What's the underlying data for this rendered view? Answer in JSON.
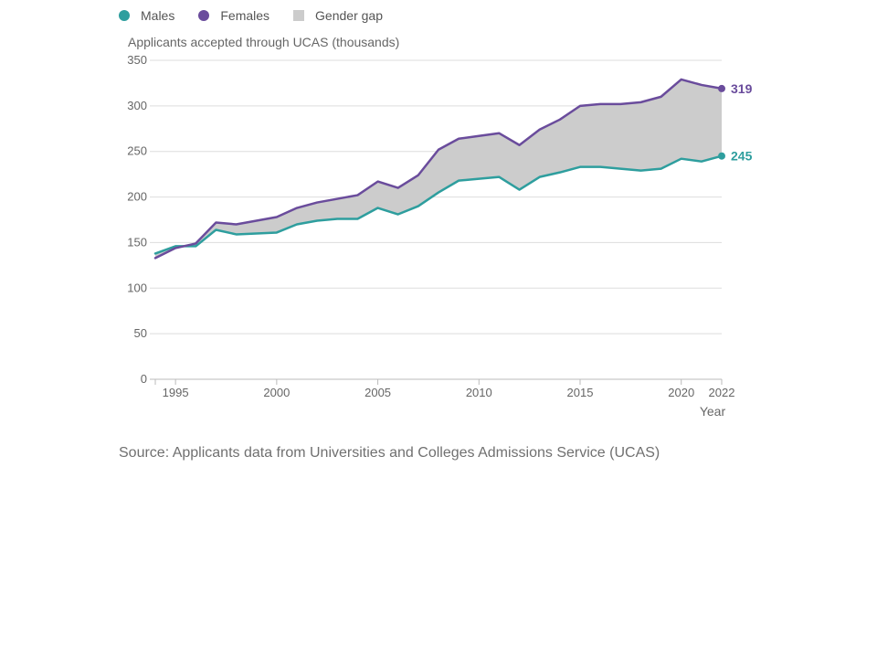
{
  "legend": [
    {
      "label": "Males",
      "color": "#2e9e9e",
      "shape": "circle"
    },
    {
      "label": "Females",
      "color": "#6a4c9c",
      "shape": "circle"
    },
    {
      "label": "Gender gap",
      "color": "#cccccc",
      "shape": "square"
    }
  ],
  "source": "Source: Applicants data from Universities and Colleges Admissions Service (UCAS)",
  "chart_data": {
    "type": "line",
    "title": "",
    "ylabel": "Applicants accepted through UCAS (thousands)",
    "xlabel": "Year",
    "ylim": [
      0,
      350
    ],
    "xlim": [
      1994,
      2022
    ],
    "yticks": [
      0,
      50,
      100,
      150,
      200,
      250,
      300,
      350
    ],
    "xticks": [
      1995,
      2000,
      2005,
      2010,
      2015,
      2020,
      2022
    ],
    "grid": true,
    "legend_position": "top-left",
    "x": [
      1994,
      1995,
      1996,
      1997,
      1998,
      1999,
      2000,
      2001,
      2002,
      2003,
      2004,
      2005,
      2006,
      2007,
      2008,
      2009,
      2010,
      2011,
      2012,
      2013,
      2014,
      2015,
      2016,
      2017,
      2018,
      2019,
      2020,
      2021,
      2022
    ],
    "series": [
      {
        "name": "Males",
        "color": "#2e9e9e",
        "values": [
          138,
          146,
          146,
          164,
          159,
          160,
          161,
          170,
          174,
          176,
          176,
          188,
          181,
          190,
          205,
          218,
          220,
          222,
          208,
          222,
          227,
          233,
          233,
          231,
          229,
          231,
          242,
          239,
          245
        ],
        "end_label": "245"
      },
      {
        "name": "Females",
        "color": "#6a4c9c",
        "values": [
          133,
          144,
          149,
          172,
          170,
          174,
          178,
          188,
          194,
          198,
          202,
          217,
          210,
          224,
          252,
          264,
          267,
          270,
          257,
          274,
          285,
          300,
          302,
          302,
          304,
          310,
          329,
          323,
          319
        ],
        "end_label": "319"
      }
    ],
    "fill_between": {
      "name": "Gender gap",
      "color": "#cccccc"
    }
  }
}
